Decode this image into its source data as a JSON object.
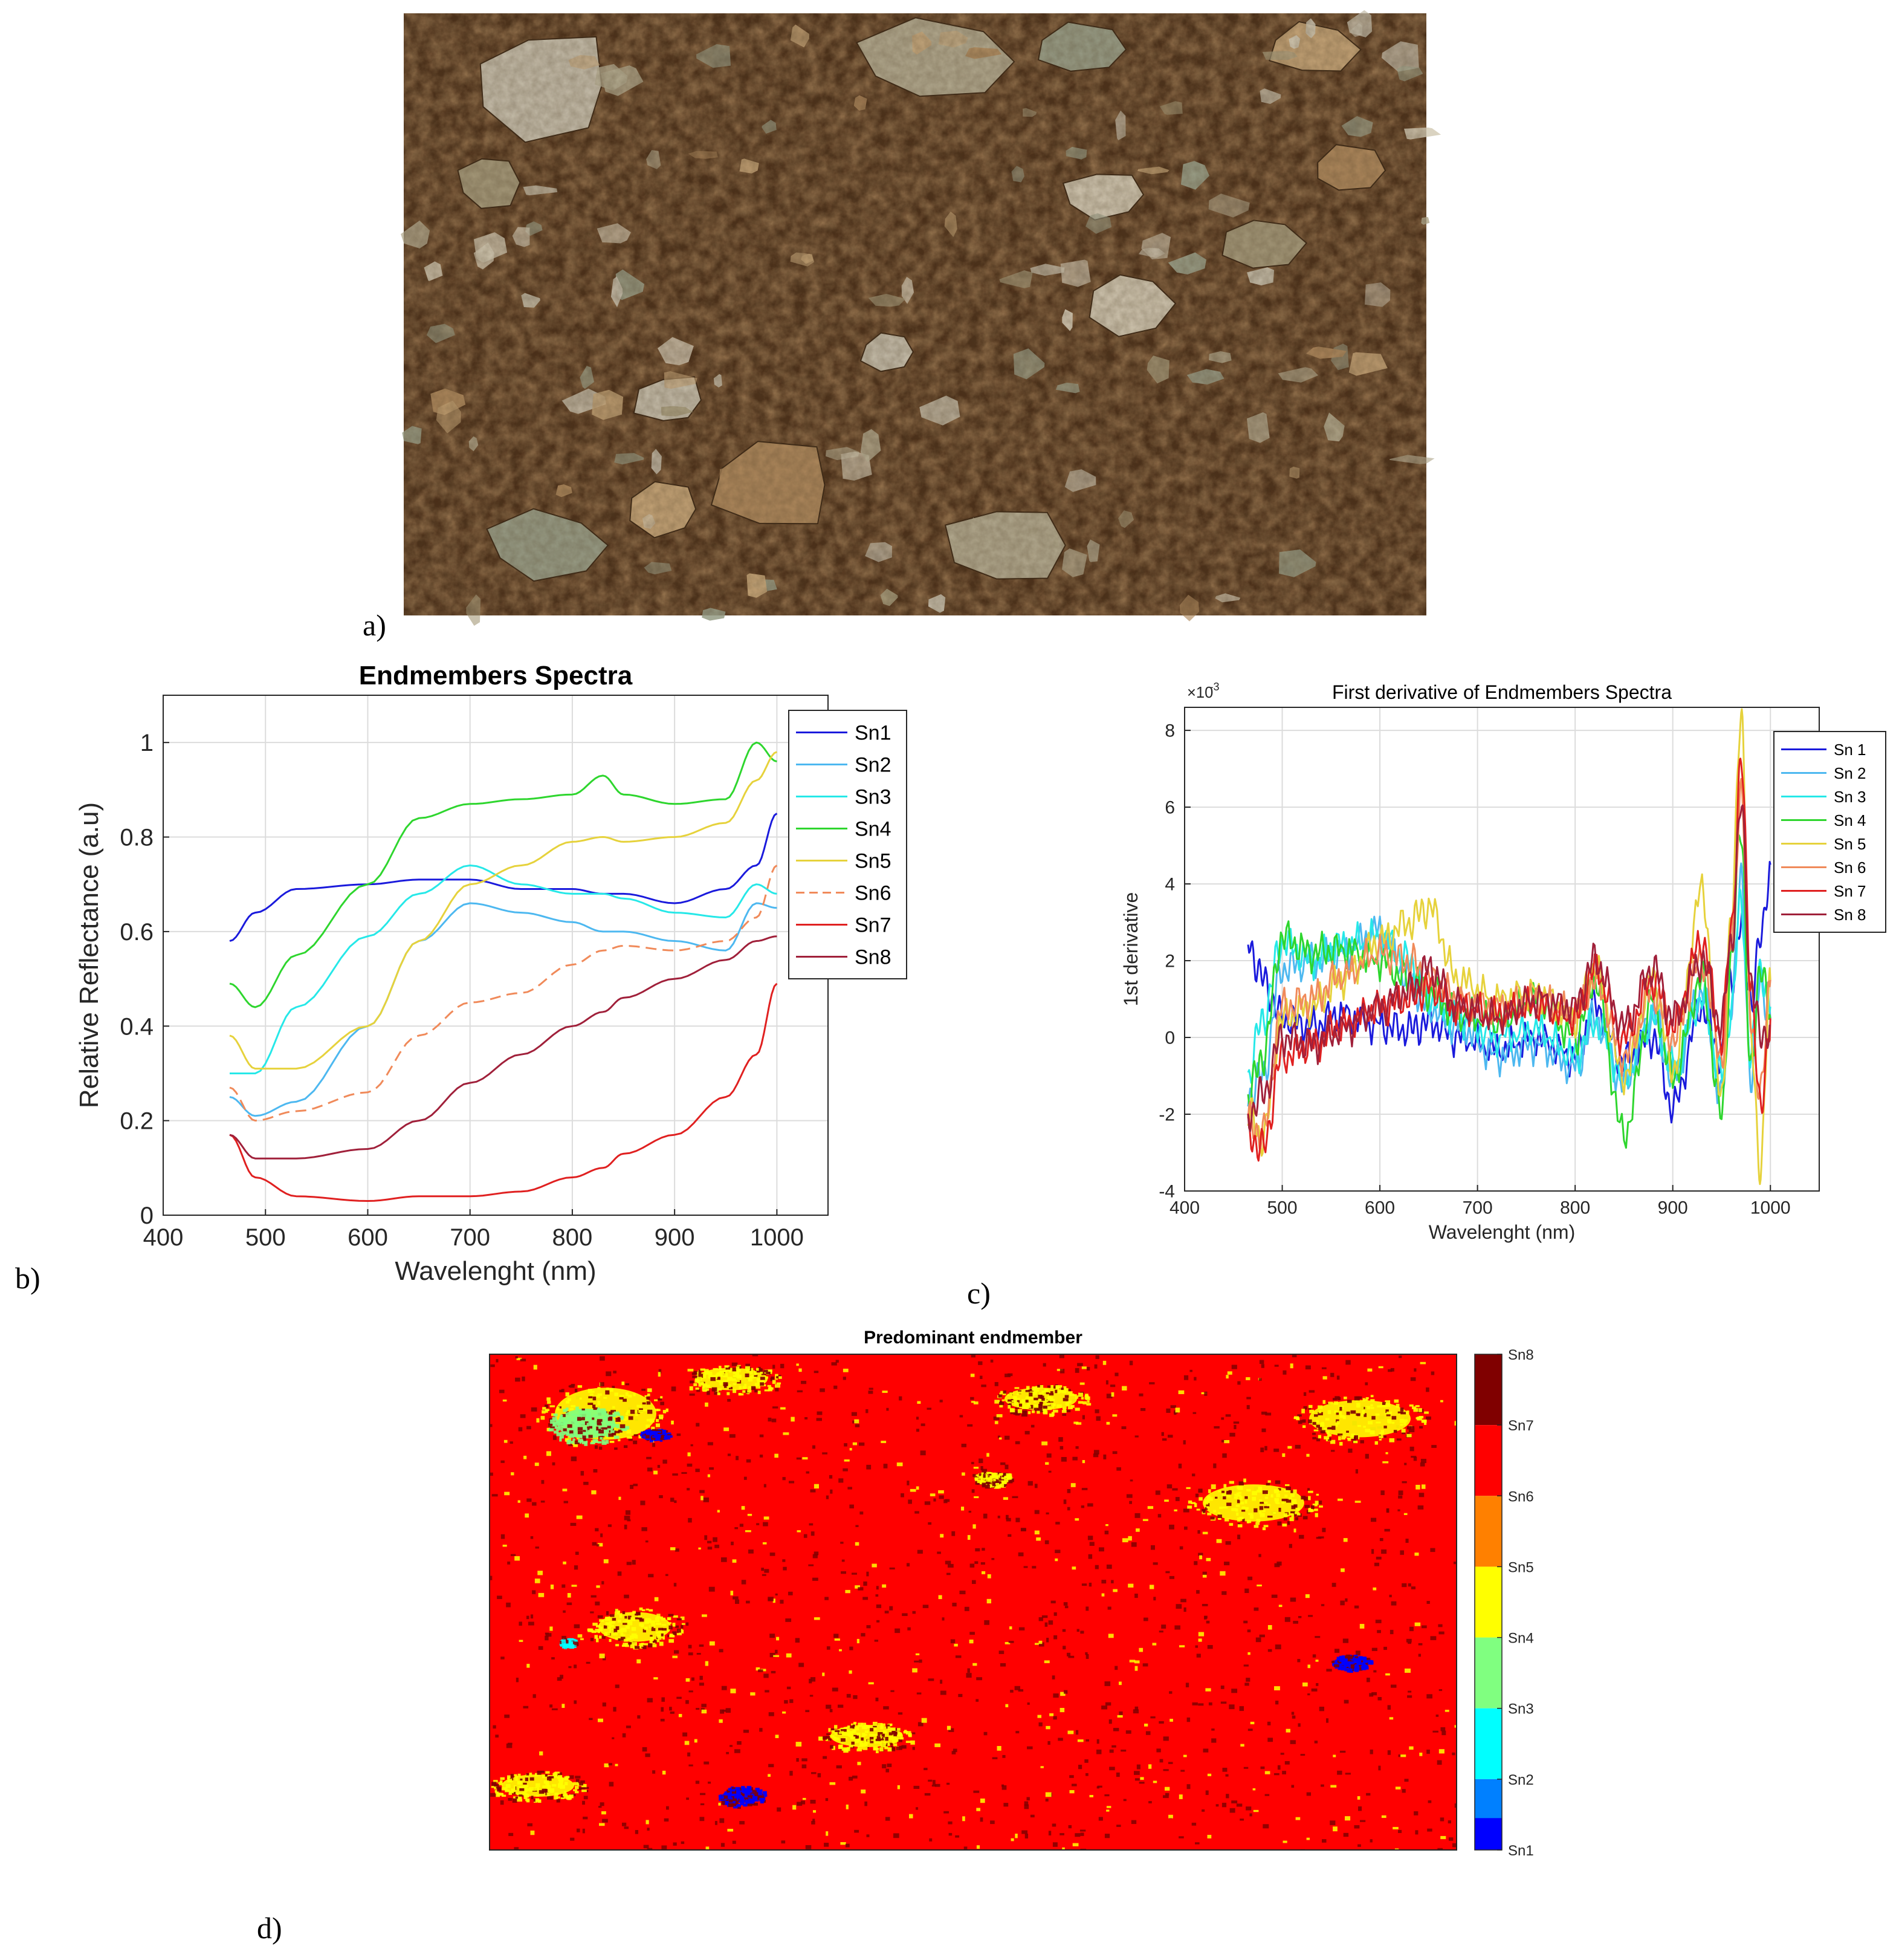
{
  "labels": {
    "a": "a)",
    "b": "b)",
    "c": "c)",
    "d": "d)"
  },
  "colors": {
    "Sn1": "#1a1adc",
    "Sn2": "#4db8f0",
    "Sn3": "#26e8e8",
    "Sn4": "#2ed62e",
    "Sn5": "#e6d23c",
    "Sn6": "#f08a5a",
    "Sn7": "#e02020",
    "Sn8": "#a0203a"
  },
  "chart_data": [
    {
      "type": "line",
      "title": "Endmembers Spectra",
      "xlabel": "Wavelenght (nm)",
      "ylabel": "Relative Reflectance (a.u)",
      "xlim": [
        400,
        1050
      ],
      "ylim": [
        0,
        1.1
      ],
      "xticks": [
        400,
        500,
        600,
        700,
        800,
        900,
        1000
      ],
      "yticks": [
        0,
        0.2,
        0.4,
        0.6,
        0.8,
        1
      ],
      "grid": true,
      "legend_position": "top-right",
      "x": [
        465,
        490,
        530,
        600,
        650,
        700,
        750,
        800,
        830,
        850,
        900,
        950,
        980,
        1000
      ],
      "series": [
        {
          "name": "Sn1",
          "style": "solid",
          "values": [
            0.58,
            0.64,
            0.69,
            0.7,
            0.71,
            0.71,
            0.69,
            0.69,
            0.68,
            0.68,
            0.66,
            0.69,
            0.74,
            0.85
          ]
        },
        {
          "name": "Sn2",
          "style": "solid",
          "values": [
            0.25,
            0.21,
            0.24,
            0.4,
            0.58,
            0.66,
            0.64,
            0.62,
            0.6,
            0.6,
            0.58,
            0.56,
            0.66,
            0.65
          ]
        },
        {
          "name": "Sn3",
          "style": "solid",
          "values": [
            0.3,
            0.3,
            0.44,
            0.59,
            0.68,
            0.74,
            0.7,
            0.68,
            0.68,
            0.67,
            0.64,
            0.63,
            0.7,
            0.68
          ]
        },
        {
          "name": "Sn4",
          "style": "solid",
          "values": [
            0.49,
            0.44,
            0.55,
            0.7,
            0.84,
            0.87,
            0.88,
            0.89,
            0.93,
            0.89,
            0.87,
            0.88,
            1.0,
            0.96
          ]
        },
        {
          "name": "Sn5",
          "style": "solid",
          "values": [
            0.38,
            0.31,
            0.31,
            0.4,
            0.58,
            0.7,
            0.74,
            0.79,
            0.8,
            0.79,
            0.8,
            0.83,
            0.92,
            0.98
          ]
        },
        {
          "name": "Sn6",
          "style": "dashed",
          "values": [
            0.27,
            0.2,
            0.22,
            0.26,
            0.38,
            0.45,
            0.47,
            0.53,
            0.56,
            0.57,
            0.56,
            0.58,
            0.63,
            0.74
          ]
        },
        {
          "name": "Sn7",
          "style": "solid",
          "values": [
            0.17,
            0.08,
            0.04,
            0.03,
            0.04,
            0.04,
            0.05,
            0.08,
            0.1,
            0.13,
            0.17,
            0.25,
            0.34,
            0.49
          ]
        },
        {
          "name": "Sn8",
          "style": "solid",
          "values": [
            0.17,
            0.12,
            0.12,
            0.14,
            0.2,
            0.28,
            0.34,
            0.4,
            0.43,
            0.46,
            0.5,
            0.54,
            0.58,
            0.59
          ]
        }
      ]
    },
    {
      "type": "line",
      "title": "First derivative of Endmembers Spectra",
      "xlabel": "Wavelenght (nm)",
      "ylabel": "1st derivative",
      "exponent_label": "×10",
      "exponent": "-3",
      "xlim": [
        400,
        1050
      ],
      "ylim": [
        -4,
        8.6
      ],
      "xticks": [
        400,
        500,
        600,
        700,
        800,
        900,
        1000
      ],
      "yticks": [
        -4,
        -2,
        0,
        2,
        4,
        6,
        8
      ],
      "grid": true,
      "legend_position": "top-right",
      "x": [
        465,
        480,
        500,
        530,
        560,
        600,
        630,
        650,
        680,
        720,
        760,
        800,
        820,
        850,
        880,
        900,
        930,
        950,
        960,
        970,
        980,
        990,
        1000
      ],
      "series": [
        {
          "name": "Sn 1",
          "values": [
            2.5,
            1.5,
            0.5,
            0.3,
            0.6,
            0.3,
            0.2,
            0.4,
            0.0,
            -0.3,
            0.0,
            -0.5,
            0.8,
            -0.6,
            0.0,
            -1.8,
            0.8,
            -0.5,
            1.5,
            3.0,
            1.0,
            2.5,
            4.5
          ]
        },
        {
          "name": "Sn 2",
          "values": [
            -1.5,
            -1.0,
            1.8,
            2.0,
            2.2,
            2.8,
            1.5,
            0.8,
            0.3,
            -0.5,
            -0.2,
            -0.8,
            0.5,
            -1.2,
            0.6,
            -1.0,
            1.2,
            -1.5,
            1.0,
            4.0,
            -1.0,
            1.5,
            0.5
          ]
        },
        {
          "name": "Sn 3",
          "values": [
            -1.0,
            0.5,
            2.5,
            2.0,
            2.4,
            2.6,
            2.0,
            1.0,
            0.5,
            0.0,
            0.2,
            -0.5,
            0.4,
            -1.0,
            0.5,
            -0.8,
            1.0,
            -1.0,
            0.8,
            3.5,
            -0.5,
            1.8,
            0.8
          ]
        },
        {
          "name": "Sn 4",
          "values": [
            -1.5,
            -0.5,
            2.6,
            2.2,
            2.3,
            2.0,
            1.5,
            1.2,
            0.6,
            0.4,
            1.0,
            0.0,
            1.5,
            -2.5,
            1.0,
            -1.0,
            1.5,
            -2.0,
            2.0,
            5.5,
            -1.0,
            2.0,
            0.5
          ]
        },
        {
          "name": "Sn 5",
          "values": [
            -2.0,
            -2.6,
            0.5,
            0.8,
            1.5,
            2.5,
            3.0,
            3.4,
            1.5,
            1.0,
            1.2,
            0.5,
            1.8,
            -1.0,
            1.5,
            -0.8,
            3.8,
            -1.5,
            3.0,
            8.6,
            0.0,
            -3.4,
            1.5
          ]
        },
        {
          "name": "Sn 6",
          "values": [
            -2.2,
            -2.5,
            0.8,
            1.0,
            1.6,
            2.2,
            2.0,
            1.5,
            1.0,
            0.8,
            1.0,
            0.6,
            1.5,
            -0.5,
            1.2,
            0.0,
            2.0,
            -0.5,
            2.5,
            6.5,
            0.5,
            -1.5,
            1.5
          ]
        },
        {
          "name": "Sn 7",
          "values": [
            -2.5,
            -2.9,
            -0.5,
            -0.2,
            0.3,
            0.8,
            1.0,
            1.3,
            0.8,
            0.6,
            0.8,
            0.5,
            1.8,
            0.0,
            1.5,
            0.3,
            2.5,
            0.0,
            2.8,
            7.2,
            1.5,
            -2.0,
            0.5
          ]
        },
        {
          "name": "Sn 8",
          "values": [
            -2.0,
            -1.5,
            0.0,
            -0.2,
            0.2,
            0.8,
            1.2,
            1.8,
            0.8,
            0.5,
            1.0,
            0.8,
            2.0,
            0.3,
            1.8,
            0.5,
            2.0,
            0.3,
            2.5,
            6.0,
            1.5,
            0.0,
            0.3
          ]
        }
      ]
    },
    {
      "type": "heatmap",
      "title": "Predominant endmember",
      "colorbar_labels": [
        "Sn8",
        "Sn7",
        "Sn6",
        "Sn5",
        "Sn4",
        "Sn3",
        "Sn2",
        "Sn1"
      ],
      "colorbar_colors": [
        "#800000",
        "#ff0000",
        "#ff8000",
        "#ffff00",
        "#80ff80",
        "#00ffff",
        "#0080ff",
        "#0000ff"
      ],
      "background_class": "Sn7",
      "regions": [
        {
          "class": "Sn5",
          "cx": 0.12,
          "cy": 0.12,
          "rx": 0.07,
          "ry": 0.07
        },
        {
          "class": "Sn4",
          "cx": 0.1,
          "cy": 0.14,
          "rx": 0.04,
          "ry": 0.04
        },
        {
          "class": "Sn5",
          "cx": 0.25,
          "cy": 0.05,
          "rx": 0.05,
          "ry": 0.03
        },
        {
          "class": "Sn5",
          "cx": 0.57,
          "cy": 0.09,
          "rx": 0.05,
          "ry": 0.03
        },
        {
          "class": "Sn5",
          "cx": 0.9,
          "cy": 0.13,
          "rx": 0.07,
          "ry": 0.05
        },
        {
          "class": "Sn5",
          "cx": 0.79,
          "cy": 0.3,
          "rx": 0.07,
          "ry": 0.05
        },
        {
          "class": "Sn5",
          "cx": 0.15,
          "cy": 0.55,
          "rx": 0.05,
          "ry": 0.04
        },
        {
          "class": "Sn5",
          "cx": 0.39,
          "cy": 0.77,
          "rx": 0.05,
          "ry": 0.03
        },
        {
          "class": "Sn5",
          "cx": 0.05,
          "cy": 0.87,
          "rx": 0.05,
          "ry": 0.03
        },
        {
          "class": "Sn5",
          "cx": 0.52,
          "cy": 0.25,
          "rx": 0.02,
          "ry": 0.015
        },
        {
          "class": "Sn1",
          "cx": 0.26,
          "cy": 0.89,
          "rx": 0.025,
          "ry": 0.02
        },
        {
          "class": "Sn1",
          "cx": 0.17,
          "cy": 0.16,
          "rx": 0.015,
          "ry": 0.01
        },
        {
          "class": "Sn1",
          "cx": 0.89,
          "cy": 0.62,
          "rx": 0.02,
          "ry": 0.015
        },
        {
          "class": "Sn3",
          "cx": 0.08,
          "cy": 0.58,
          "rx": 0.008,
          "ry": 0.008
        }
      ]
    }
  ]
}
